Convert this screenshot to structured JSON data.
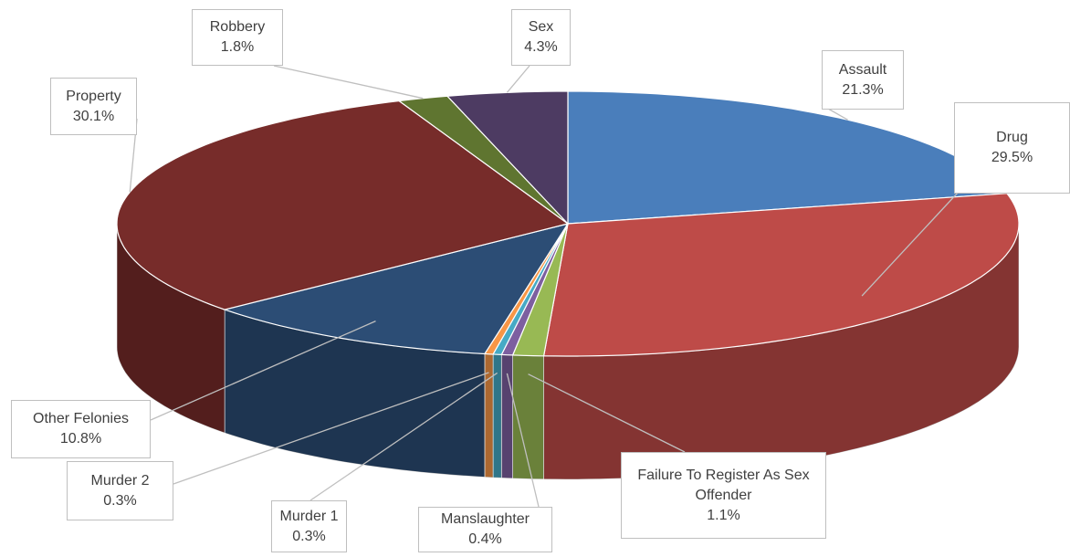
{
  "chart_data": {
    "type": "pie",
    "categories": [
      "Assault",
      "Drug",
      "Failure To Register As Sex Offender",
      "Manslaughter",
      "Murder 1",
      "Murder 2",
      "Other Felonies",
      "Property",
      "Robbery",
      "Sex"
    ],
    "values": [
      21.3,
      29.5,
      1.1,
      0.4,
      0.3,
      0.3,
      10.8,
      30.1,
      1.8,
      4.3
    ],
    "value_labels": [
      "21.3%",
      "29.5%",
      "1.1%",
      "0.4%",
      "0.3%",
      "0.3%",
      "10.8%",
      "30.1%",
      "1.8%",
      "4.3%"
    ],
    "colors": [
      "#4a7ebb",
      "#be4b48",
      "#98b954",
      "#7d5fa0",
      "#46aac5",
      "#f79646",
      "#2c4d75",
      "#772c2a",
      "#5f7530",
      "#4d3b62"
    ]
  }
}
